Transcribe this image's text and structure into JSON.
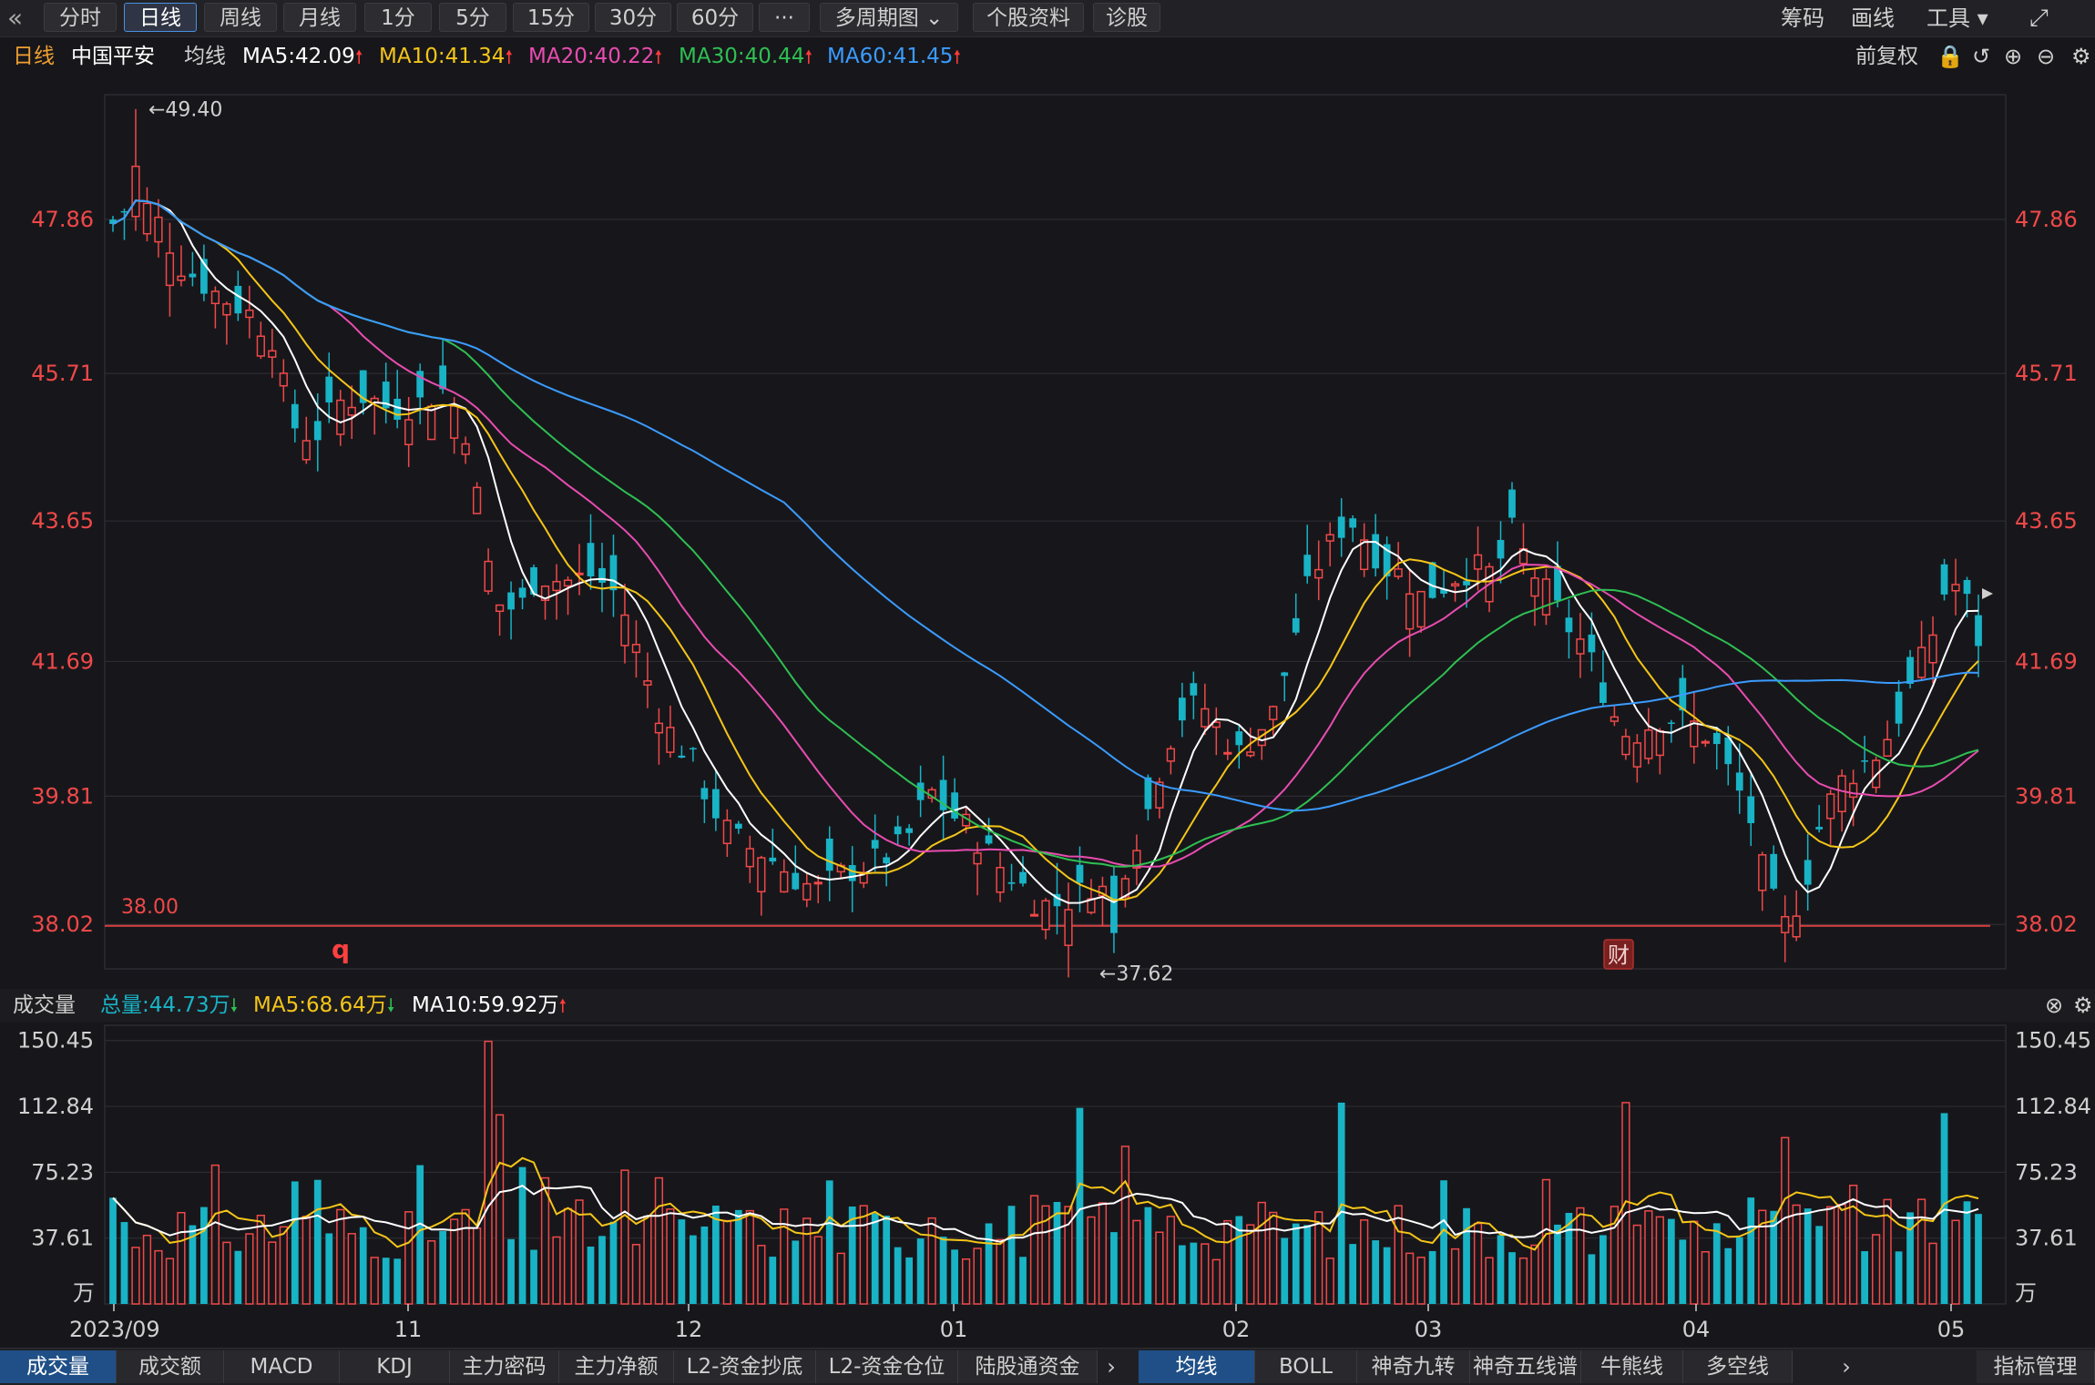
{
  "toolbar": {
    "collapse_icon": "double-chevron-left-icon",
    "items": [
      "分时",
      "日线",
      "周线",
      "月线",
      "1分",
      "5分",
      "15分",
      "30分",
      "60分",
      "···",
      "多周期图 ⌄",
      "个股资料",
      "诊股"
    ],
    "active": 1,
    "right_items": [
      "筹码",
      "画线",
      "工具 ▾"
    ],
    "expand_icon": "fullscreen-icon"
  },
  "info": {
    "period": "日线",
    "stock": "中国平安",
    "label": "均线",
    "ma": [
      {
        "text": "MA5:42.09",
        "color": "#ffffff"
      },
      {
        "text": "MA10:41.34",
        "color": "#f5c518"
      },
      {
        "text": "MA20:40.22",
        "color": "#e84cb0"
      },
      {
        "text": "MA30:40.44",
        "color": "#2fbf52"
      },
      {
        "text": "MA60:41.45",
        "color": "#3b9bff"
      }
    ],
    "adjust": "前复权"
  },
  "volume_info": {
    "label": "成交量",
    "total": "总量:44.73万",
    "ma5": "MA5:68.64万",
    "ma10": "MA10:59.92万"
  },
  "chart_data": [
    {
      "type": "candlestick",
      "yticks": [
        "47.86",
        "45.71",
        "43.65",
        "41.69",
        "39.81",
        "38.02"
      ],
      "ylim": [
        37.4,
        49.6
      ],
      "high_annotation": "←49.40",
      "low_annotation": "←37.62",
      "line_label": "38.00",
      "marker_q": "q",
      "marker_cai": "财",
      "xlabels": [
        "2023/09",
        "11",
        "12",
        "01",
        "02",
        "03",
        "04",
        "05"
      ]
    },
    {
      "type": "bar",
      "yticks": [
        "150.45",
        "112.84",
        "75.23",
        "37.61"
      ],
      "unit": "万",
      "ylim": [
        0,
        155
      ]
    }
  ],
  "tabs_left": [
    "成交量",
    "成交额",
    "MACD",
    "KDJ",
    "主力密码",
    "主力净额",
    "L2-资金抄底",
    "L2-资金仓位",
    "陆股通资金"
  ],
  "tabs_right": [
    "均线",
    "BOLL",
    "神奇九转",
    "神奇五线谱",
    "牛熊线",
    "多空线"
  ],
  "indicator_manage": "指标管理"
}
